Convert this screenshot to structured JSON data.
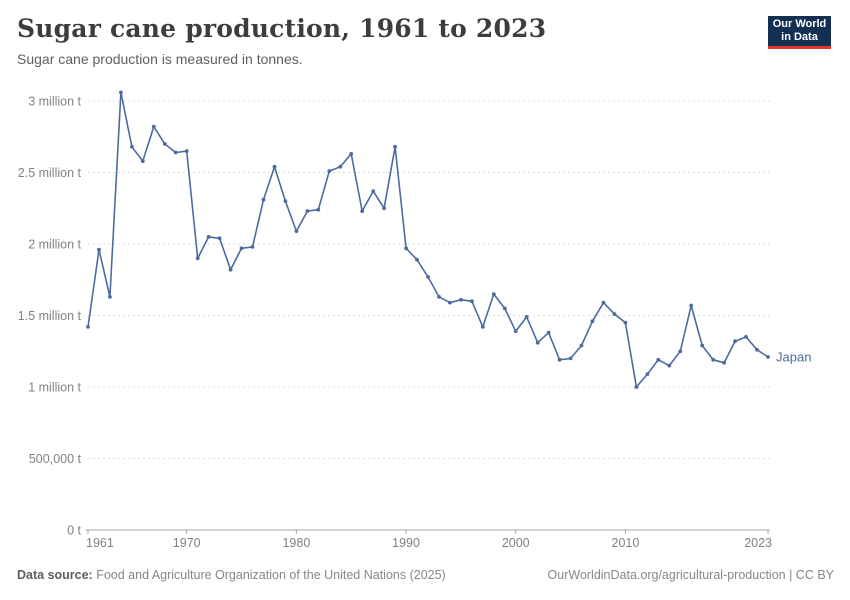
{
  "header": {
    "title": "Sugar cane production, 1961 to 2023",
    "subtitle": "Sugar cane production is measured in tonnes.",
    "logo": {
      "line1": "Our World",
      "line2": "in Data"
    }
  },
  "footer": {
    "datasource_label": "Data source:",
    "datasource_text": " Food and Agriculture Organization of the United Nations (2025)",
    "link_text": "OurWorldinData.org/agricultural-production | CC BY"
  },
  "colors": {
    "line": "#4c6b9e",
    "grid": "#dcdcdc",
    "axis": "#a3a3a3",
    "tick_label": "#818181",
    "logo_bg": "#132f52",
    "logo_accent": "#e0362c"
  },
  "chart_data": {
    "type": "line",
    "title": "Sugar cane production, 1961 to 2023",
    "xlabel": "",
    "ylabel": "Sugar cane production (tonnes)",
    "xlim": [
      1961,
      2023
    ],
    "ylim": [
      0,
      3000000
    ],
    "grid": "horizontal-dashed",
    "legend": "end-of-line-label",
    "x_ticks": [
      1961,
      1970,
      1980,
      1990,
      2000,
      2010,
      2023
    ],
    "y_ticks": [
      {
        "value": 0,
        "label": "0 t"
      },
      {
        "value": 500000,
        "label": "500,000 t"
      },
      {
        "value": 1000000,
        "label": "1 million t"
      },
      {
        "value": 1500000,
        "label": "1.5 million t"
      },
      {
        "value": 2000000,
        "label": "2 million t"
      },
      {
        "value": 2500000,
        "label": "2.5 million t"
      },
      {
        "value": 3000000,
        "label": "3 million t"
      }
    ],
    "series": [
      {
        "name": "Japan",
        "color": "#4c6b9e",
        "x": [
          1961,
          1962,
          1963,
          1964,
          1965,
          1966,
          1967,
          1968,
          1969,
          1970,
          1971,
          1972,
          1973,
          1974,
          1975,
          1976,
          1977,
          1978,
          1979,
          1980,
          1981,
          1982,
          1983,
          1984,
          1985,
          1986,
          1987,
          1988,
          1989,
          1990,
          1991,
          1992,
          1993,
          1994,
          1995,
          1996,
          1997,
          1998,
          1999,
          2000,
          2001,
          2002,
          2003,
          2004,
          2005,
          2006,
          2007,
          2008,
          2009,
          2010,
          2011,
          2012,
          2013,
          2014,
          2015,
          2016,
          2017,
          2018,
          2019,
          2020,
          2021,
          2022,
          2023
        ],
        "values": [
          1420000,
          1960000,
          1630000,
          3060000,
          2680000,
          2580000,
          2820000,
          2700000,
          2640000,
          2650000,
          1900000,
          2050000,
          2040000,
          1820000,
          1970000,
          1980000,
          2310000,
          2540000,
          2300000,
          2090000,
          2230000,
          2240000,
          2510000,
          2540000,
          2630000,
          2230000,
          2370000,
          2250000,
          2680000,
          1970000,
          1890000,
          1770000,
          1630000,
          1590000,
          1610000,
          1600000,
          1420000,
          1650000,
          1550000,
          1390000,
          1490000,
          1310000,
          1380000,
          1190000,
          1200000,
          1290000,
          1460000,
          1590000,
          1510000,
          1450000,
          1000000,
          1090000,
          1190000,
          1150000,
          1250000,
          1570000,
          1290000,
          1190000,
          1170000,
          1320000,
          1350000,
          1260000,
          1210000
        ]
      }
    ]
  }
}
